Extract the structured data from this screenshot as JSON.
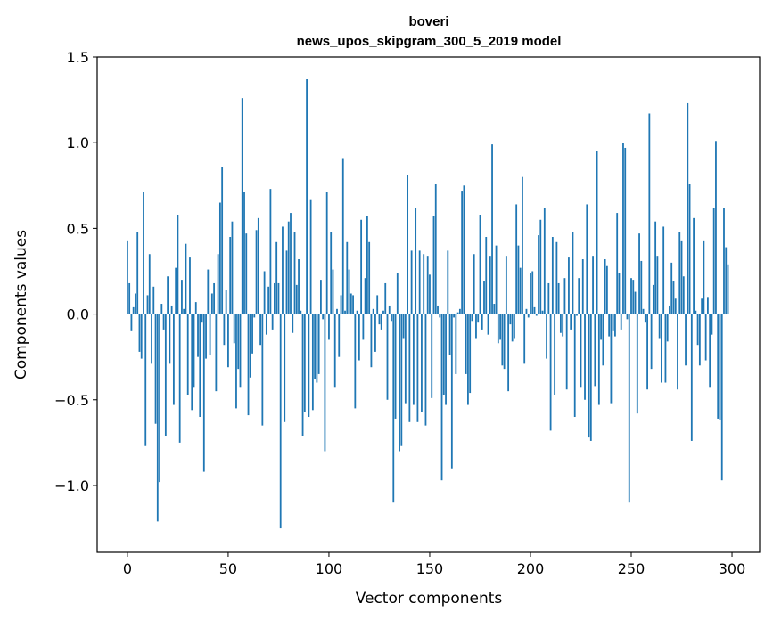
{
  "chart_data": {
    "type": "bar",
    "title": "boveri",
    "subtitle": "news_upos_skipgram_300_5_2019 model",
    "xlabel": "Vector components",
    "ylabel": "Components values",
    "xlim": [
      -15,
      313.7
    ],
    "ylim": [
      -1.39,
      1.5
    ],
    "xticks": [
      0,
      50,
      100,
      150,
      200,
      250,
      300
    ],
    "yticks": [
      -1.0,
      -0.5,
      0.0,
      0.5,
      1.0,
      1.5
    ],
    "xtick_labels": [
      "0",
      "50",
      "100",
      "150",
      "200",
      "250",
      "300"
    ],
    "ytick_labels": [
      "−1.0",
      "−0.5",
      "0.0",
      "0.5",
      "1.0",
      "1.5"
    ],
    "grid": false,
    "color": "#1f77b4",
    "values": [
      0.43,
      0.18,
      -0.1,
      0.04,
      0.12,
      0.48,
      -0.22,
      -0.26,
      0.71,
      -0.77,
      0.11,
      0.35,
      -0.29,
      0.16,
      -0.64,
      -1.21,
      -0.98,
      0.06,
      -0.09,
      -0.71,
      0.22,
      -0.29,
      0.05,
      -0.53,
      0.27,
      0.58,
      -0.75,
      0.2,
      0.03,
      0.41,
      -0.47,
      0.33,
      -0.56,
      -0.43,
      0.07,
      -0.25,
      -0.6,
      -0.05,
      -0.92,
      -0.26,
      0.26,
      -0.24,
      0.12,
      0.18,
      -0.45,
      0.35,
      0.65,
      0.86,
      -0.18,
      0.14,
      -0.31,
      0.45,
      0.54,
      -0.17,
      -0.55,
      -0.32,
      -0.43,
      1.26,
      0.71,
      0.47,
      -0.59,
      -0.37,
      -0.23,
      -0.02,
      0.49,
      0.56,
      -0.18,
      -0.65,
      0.25,
      -0.12,
      0.16,
      0.73,
      -0.09,
      0.18,
      0.42,
      0.18,
      -1.25,
      0.51,
      -0.63,
      0.37,
      0.54,
      0.59,
      -0.11,
      0.48,
      0.17,
      0.32,
      0.02,
      -0.71,
      -0.57,
      1.37,
      -0.6,
      0.67,
      -0.56,
      -0.38,
      -0.4,
      -0.35,
      0.2,
      -0.03,
      -0.8,
      0.71,
      -0.15,
      0.48,
      0.26,
      -0.43,
      0.03,
      -0.25,
      0.11,
      0.91,
      0.02,
      0.42,
      0.26,
      0.12,
      0.11,
      -0.55,
      0.02,
      -0.27,
      0.55,
      -0.15,
      0.21,
      0.57,
      0.42,
      -0.31,
      0.03,
      -0.22,
      0.11,
      -0.06,
      -0.09,
      0.02,
      0.18,
      -0.5,
      0.05,
      -0.04,
      -1.1,
      -0.61,
      0.24,
      -0.8,
      -0.77,
      -0.14,
      -0.52,
      0.81,
      -0.63,
      0.37,
      -0.53,
      0.62,
      -0.63,
      0.37,
      -0.57,
      0.35,
      -0.65,
      0.34,
      0.23,
      -0.49,
      0.57,
      0.76,
      0.05,
      -0.02,
      -0.97,
      -0.47,
      -0.53,
      0.37,
      -0.24,
      -0.9,
      -0.02,
      -0.35,
      0.01,
      0.03,
      0.72,
      0.75,
      -0.35,
      -0.53,
      -0.46,
      -0.04,
      0.35,
      -0.14,
      -0.05,
      0.58,
      -0.09,
      0.19,
      0.45,
      -0.12,
      0.34,
      0.99,
      0.06,
      0.4,
      -0.17,
      -0.15,
      -0.3,
      -0.32,
      0.34,
      -0.45,
      -0.06,
      -0.16,
      -0.14,
      0.64,
      0.4,
      0.27,
      0.8,
      -0.29,
      0.03,
      -0.02,
      0.24,
      0.25,
      0.04,
      -0.01,
      0.46,
      0.55,
      0.02,
      0.62,
      -0.26,
      0.18,
      -0.68,
      0.45,
      -0.47,
      0.42,
      0.18,
      -0.11,
      -0.13,
      0.21,
      -0.44,
      0.33,
      -0.09,
      0.48,
      -0.6,
      -0.01,
      0.21,
      -0.43,
      0.32,
      -0.5,
      0.64,
      -0.72,
      -0.74,
      0.34,
      -0.42,
      0.95,
      -0.53,
      -0.15,
      -0.3,
      0.32,
      0.28,
      -0.13,
      -0.52,
      -0.1,
      -0.13,
      0.59,
      0.24,
      -0.09,
      1.0,
      0.97,
      -0.03,
      -1.1,
      0.21,
      0.2,
      0.13,
      -0.58,
      0.47,
      0.31,
      0.03,
      -0.05,
      -0.44,
      1.17,
      -0.32,
      0.17,
      0.54,
      0.34,
      -0.14,
      -0.4,
      0.51,
      -0.4,
      -0.16,
      0.05,
      0.3,
      0.19,
      0.09,
      -0.44,
      0.48,
      0.43,
      0.22,
      -0.3,
      1.23,
      0.76,
      -0.74,
      0.56,
      0.02,
      -0.18,
      -0.3,
      0.09,
      0.43,
      -0.27,
      0.1,
      -0.43,
      -0.12,
      0.62,
      1.01,
      -0.61,
      -0.62,
      -0.97,
      0.62,
      0.39,
      0.29,
      0.0
    ]
  }
}
